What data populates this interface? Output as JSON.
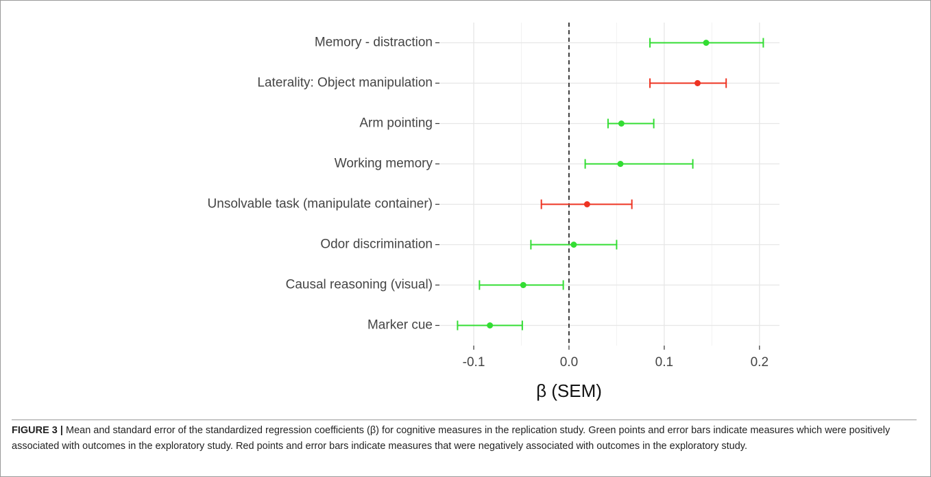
{
  "chart_data": {
    "type": "errorbar",
    "categories": [
      "Memory - distraction",
      "Laterality: Object manipulation",
      "Arm pointing",
      "Working memory",
      "Unsolvable task (manipulate container)",
      "Odor discrimination",
      "Causal reasoning (visual)",
      "Marker cue"
    ],
    "values": [
      0.144,
      0.135,
      0.055,
      0.054,
      0.019,
      0.005,
      -0.048,
      -0.083
    ],
    "lower": [
      0.085,
      0.085,
      0.041,
      0.017,
      -0.029,
      -0.04,
      -0.094,
      -0.117
    ],
    "upper": [
      0.204,
      0.165,
      0.089,
      0.13,
      0.066,
      0.05,
      -0.006,
      -0.049
    ],
    "colors": [
      "#33dd33",
      "#ee3322",
      "#33dd33",
      "#33dd33",
      "#ee3322",
      "#33dd33",
      "#33dd33",
      "#33dd33"
    ],
    "xlabel": "β (SEM)",
    "xlim": [
      -0.136,
      0.221
    ],
    "xticks": [
      -0.1,
      {
        "value": 0,
        "label": "0.0"
      },
      0.1,
      0.2
    ],
    "refline": 0,
    "grid": true
  },
  "caption": {
    "label": "FIGURE 3 |",
    "text": "Mean and standard error of the standardized regression coefficients (β) for cognitive measures in the replication study. Green points and error bars indicate measures which were positively associated with outcomes in the exploratory study. Red points and error bars indicate measures that were negatively associated with outcomes in the exploratory study."
  }
}
